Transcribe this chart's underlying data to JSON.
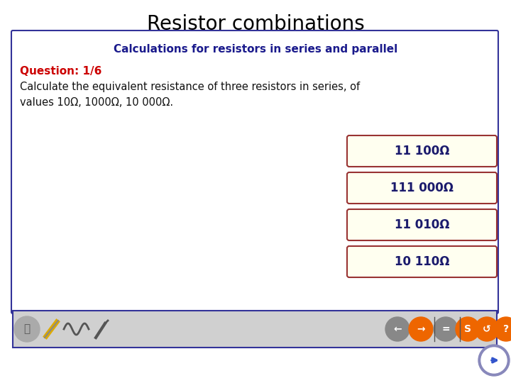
{
  "title": "Resistor combinations",
  "subtitle": "Calculations for resistors in series and parallel",
  "question_label": "Question: 1/6",
  "question_text": "Calculate the equivalent resistance of three resistors in series, of\nvalues 10Ω, 1000Ω, 10 000Ω.",
  "answer_options": [
    "11 100Ω",
    "111 000Ω",
    "11 010Ω",
    "10 110Ω"
  ],
  "title_fontsize": 20,
  "subtitle_fontsize": 11,
  "question_fontsize": 11,
  "body_fontsize": 10.5,
  "answer_fontsize": 12,
  "title_color": "#000000",
  "subtitle_color": "#1a1a8c",
  "question_color": "#cc0000",
  "body_color": "#111111",
  "answer_text_color": "#1a1a6c",
  "bg_color": "#ffffff",
  "panel_bg": "#ffffff",
  "panel_border": "#333399",
  "answer_box_fill": "#fffff0",
  "answer_box_border": "#993333",
  "toolbar_bg": "#d0d0d0",
  "toolbar_border": "#333399"
}
